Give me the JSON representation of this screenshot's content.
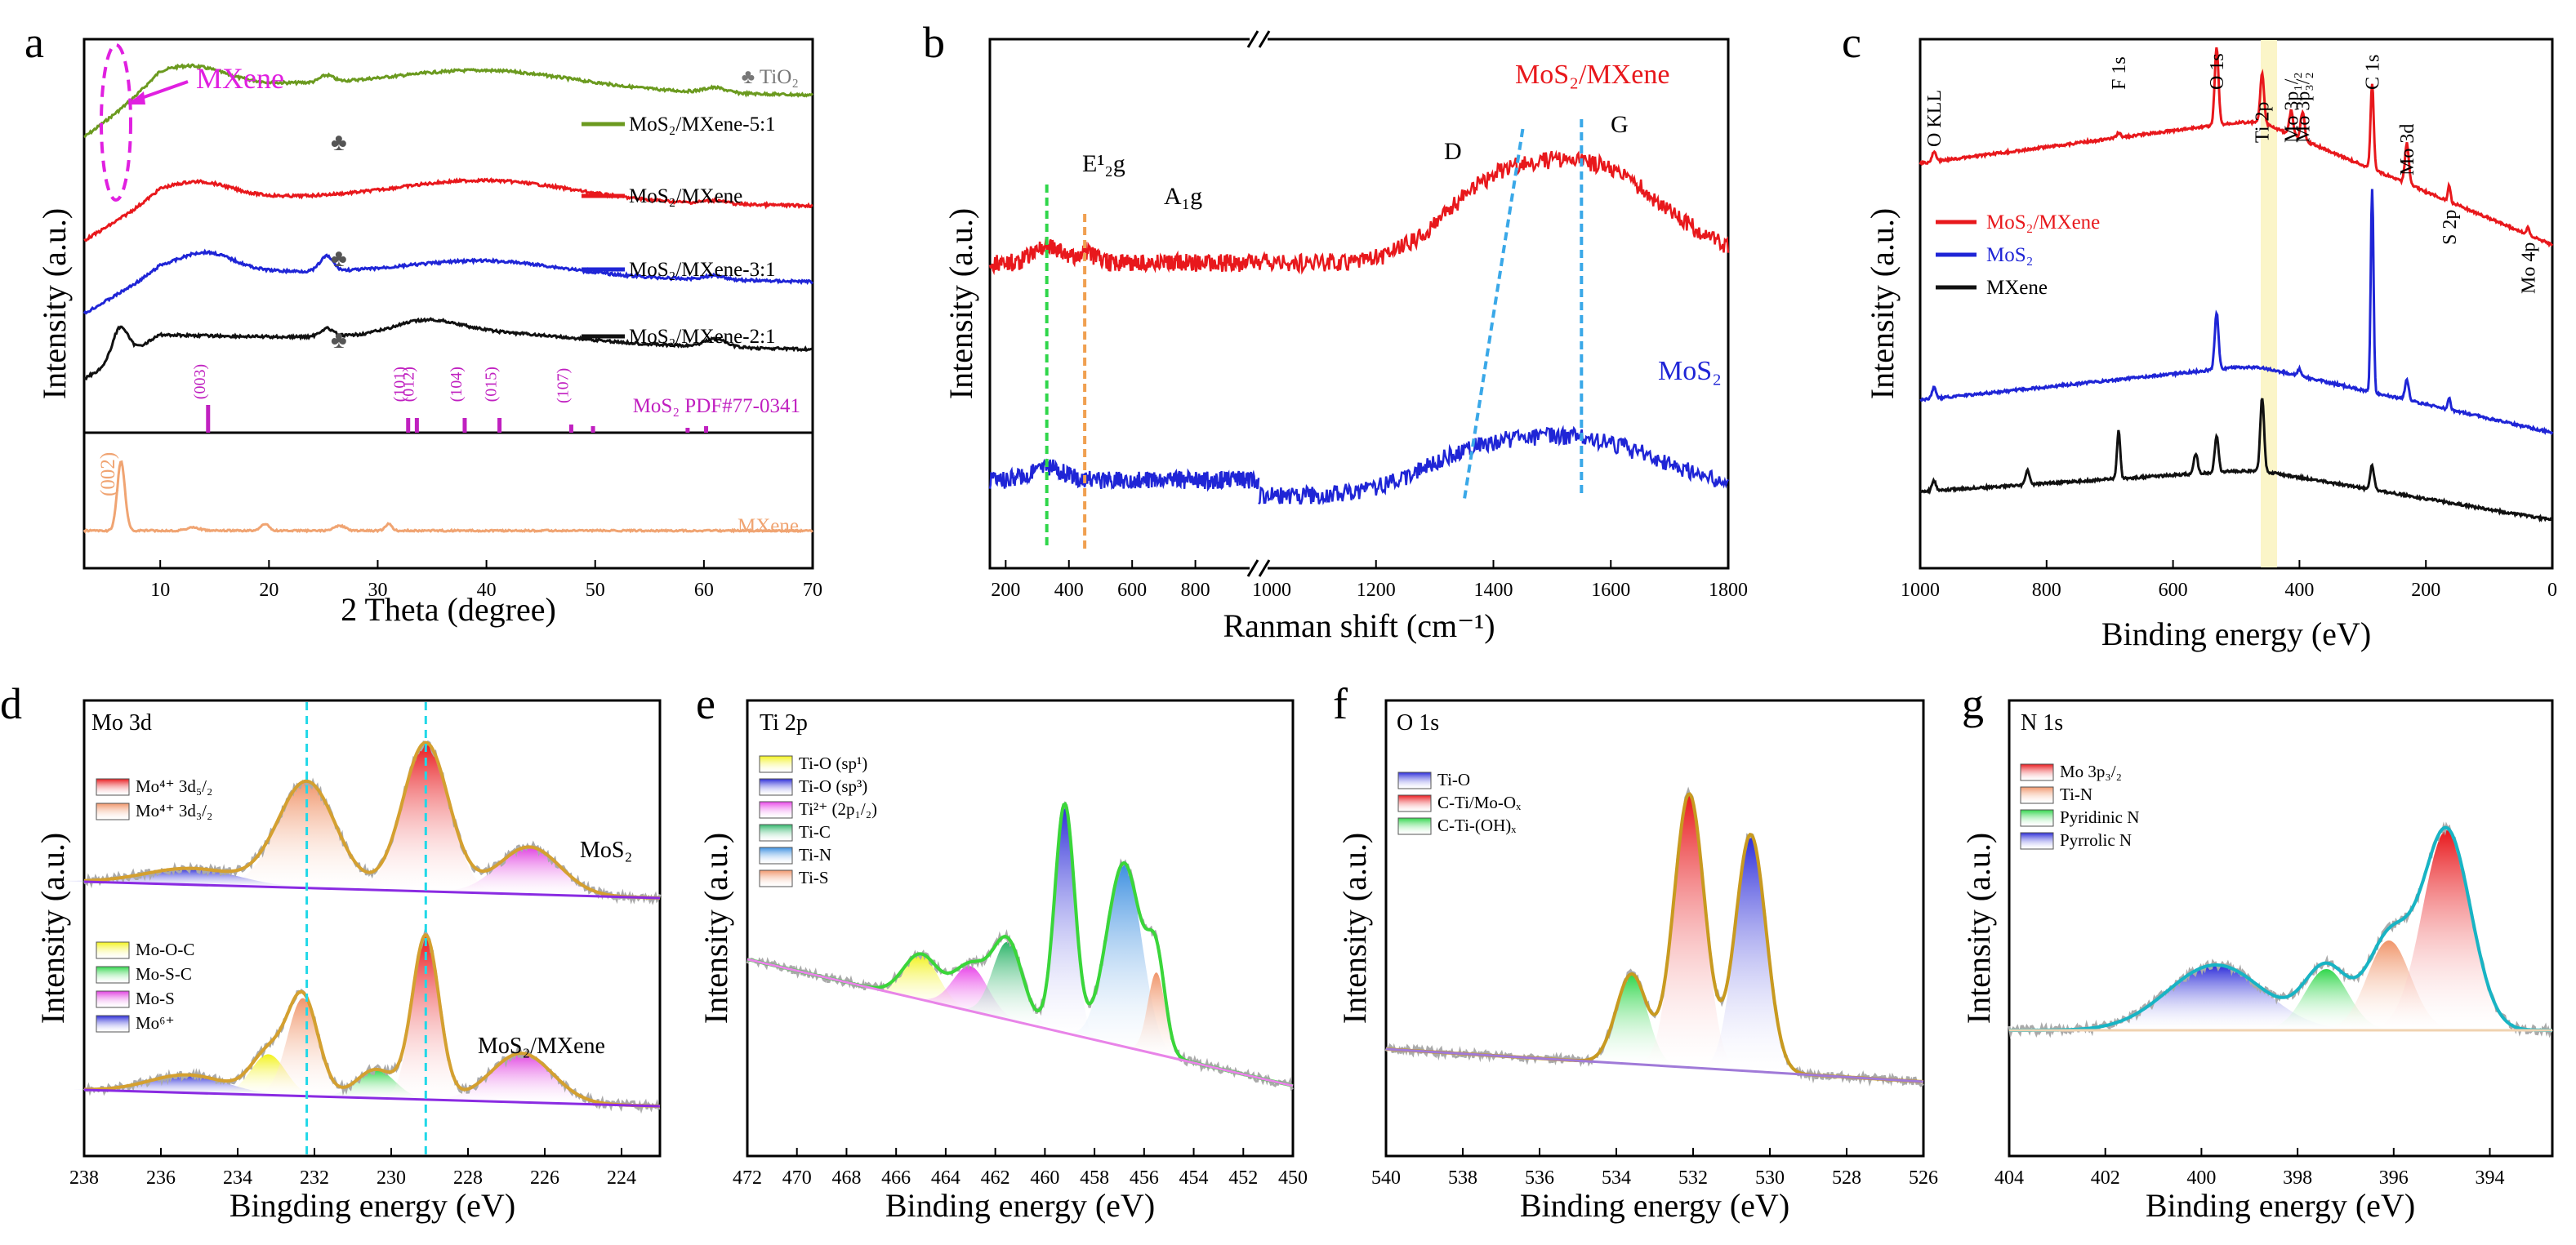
{
  "chart_data": [
    {
      "panel": "a",
      "type": "line",
      "xlabel": "2 Theta (degree)",
      "ylabel": "Intensity (a.u.)",
      "xlim": [
        3,
        70
      ],
      "xticks": [
        "10",
        "20",
        "30",
        "40",
        "50",
        "60",
        "70"
      ],
      "series": [
        {
          "name": "MoS2/MXene-5:1",
          "label": "MoS₂/MXene-5:1",
          "color": "#6b9a1f"
        },
        {
          "name": "MoS2/MXene",
          "label": "MoS₂/MXene",
          "color": "#e8181c"
        },
        {
          "name": "MoS2/MXene-3:1",
          "label": "MoS₂/MXene-3:1",
          "color": "#1f25d6"
        },
        {
          "name": "MoS2/MXene-2:1",
          "label": "MoS₂/MXene-2:1",
          "color": "#111111"
        },
        {
          "name": "MXene",
          "label": "MXene",
          "color": "#f0a472"
        }
      ],
      "annotations": {
        "mxene_marker": "MXene",
        "tio2_marker": "♣ TiO₂",
        "club": "♣",
        "reference": "MoS₂ PDF#77-0341",
        "mxene_peak": "(002)"
      },
      "reference_peaks": [
        {
          "label": "(003)",
          "x": 14.4
        },
        {
          "label": "(101)",
          "x": 32.8
        },
        {
          "label": "(012)",
          "x": 33.6
        },
        {
          "label": "(104)",
          "x": 38.0
        },
        {
          "label": "(015)",
          "x": 41.2
        },
        {
          "label": "(107)",
          "x": 47.8
        },
        {
          "label": "",
          "x": 49.8
        },
        {
          "label": "",
          "x": 58.5
        },
        {
          "label": "",
          "x": 60.2
        }
      ]
    },
    {
      "panel": "b",
      "type": "line",
      "xlabel": "Ranman shift (cm⁻¹)",
      "ylabel": "Intensity (a.u.)",
      "xlim_left": [
        150,
        1000
      ],
      "xlim_right": [
        1000,
        1800
      ],
      "xticks": [
        "200",
        "400",
        "600",
        "800",
        "1000",
        "1200",
        "1400",
        "1600",
        "1800"
      ],
      "series": [
        {
          "name": "MoS2/MXene",
          "label": "MoS₂/MXene",
          "color": "#e8181c"
        },
        {
          "name": "MoS2",
          "label": "MoS₂",
          "color": "#1f25d6"
        }
      ],
      "annotations": {
        "E2g": "E¹₂g",
        "A1g": "A₁g",
        "D": "D",
        "G": "G"
      },
      "marker_lines": {
        "E2g": 330,
        "A1g": 450,
        "G": 1550
      }
    },
    {
      "panel": "c",
      "type": "line",
      "xlabel": "Binding energy (eV)",
      "ylabel": "Intensity (a.u.)",
      "xlim": [
        1000,
        0
      ],
      "xticks": [
        "1000",
        "800",
        "600",
        "400",
        "200",
        "0"
      ],
      "series": [
        {
          "name": "MoS2/MXene",
          "label": "MoS₂/MXene",
          "color": "#e8181c"
        },
        {
          "name": "MoS2",
          "label": "MoS₂",
          "color": "#1f25d6"
        },
        {
          "name": "MXene",
          "label": "MXene",
          "color": "#111111"
        }
      ],
      "peak_labels": [
        {
          "label": "O KLL",
          "x": 978
        },
        {
          "label": "F 1s",
          "x": 686
        },
        {
          "label": "O 1s",
          "x": 531
        },
        {
          "label": "Ti 2p",
          "x": 459
        },
        {
          "label": "Mo 3p₁/₂",
          "x": 413
        },
        {
          "label": "Mo 3p₃/₂",
          "x": 395
        },
        {
          "label": "C 1s",
          "x": 285
        },
        {
          "label": "Mo 3d",
          "x": 230
        },
        {
          "label": "S 2p",
          "x": 163
        },
        {
          "label": "Mo 4p",
          "x": 38
        }
      ]
    },
    {
      "panel": "d",
      "type": "line",
      "title": "Mo 3d",
      "xlabel": "Bingding energy (eV)",
      "ylabel": "Intensity (a.u.)",
      "xlim": [
        238,
        223
      ],
      "xticks": [
        "238",
        "236",
        "234",
        "232",
        "230",
        "228",
        "226",
        "224"
      ],
      "samples": {
        "top": "MoS₂",
        "bottom": "MoS₂/MXene"
      },
      "legend_top": [
        "Mo⁴⁺ 3d₅/₂",
        "Mo⁴⁺ 3d₃/₂"
      ],
      "legend_bottom": [
        "Mo-O-C",
        "Mo-S-C",
        "Mo-S",
        "Mo⁶⁺"
      ],
      "components_top": [
        {
          "name": "Mo4+ 3d3/2",
          "center": 232.2,
          "color": "#f0956a"
        },
        {
          "name": "Mo4+ 3d5/2",
          "center": 229.1,
          "color": "#e8181c"
        },
        {
          "name": "Mo-S",
          "center": 226.4,
          "color": "#e040e0"
        },
        {
          "name": "Mo6+",
          "center": 235.2,
          "color": "#2a2ad8"
        }
      ],
      "components_bottom": [
        {
          "name": "Mo-O-C",
          "center": 233.2,
          "color": "#f2f21a"
        },
        {
          "name": "Mo-S-C",
          "center": 230.4,
          "color": "#2fd64a"
        },
        {
          "name": "Mo4+ 3d3/2",
          "center": 232.3,
          "color": "#f0956a"
        },
        {
          "name": "Mo4+ 3d5/2",
          "center": 229.1,
          "color": "#e8181c"
        },
        {
          "name": "Mo-S",
          "center": 226.6,
          "color": "#e040e0"
        },
        {
          "name": "Mo6+",
          "center": 235.3,
          "color": "#2a2ad8"
        }
      ],
      "guide_lines": [
        232.2,
        229.1
      ]
    },
    {
      "panel": "e",
      "type": "line",
      "title": "Ti 2p",
      "xlabel": "Binding energy (eV)",
      "ylabel": "Intensity (a.u.)",
      "xlim": [
        472,
        450
      ],
      "xticks": [
        "472",
        "470",
        "468",
        "466",
        "464",
        "462",
        "460",
        "458",
        "456",
        "454",
        "452",
        "450"
      ],
      "legend": [
        "Ti-O (sp¹)",
        "Ti-O (sp³)",
        "Ti²⁺ (2p₁/₂)",
        "Ti-C",
        "Ti-N",
        "Ti-S"
      ],
      "components": [
        {
          "name": "Ti-O (sp1)",
          "center": 465.0,
          "color": "#f2f21a"
        },
        {
          "name": "Ti2+ (2p1/2)",
          "center": 463.0,
          "color": "#e844e8"
        },
        {
          "name": "Ti-C",
          "center": 461.5,
          "color": "#2fb56a"
        },
        {
          "name": "Ti-O (sp3)",
          "center": 459.2,
          "color": "#2a2ad8"
        },
        {
          "name": "Ti-N",
          "center": 456.8,
          "color": "#3a8ee0"
        },
        {
          "name": "Ti-S",
          "center": 455.5,
          "color": "#f0956a"
        }
      ]
    },
    {
      "panel": "f",
      "type": "line",
      "title": "O 1s",
      "xlabel": "Binding energy (eV)",
      "ylabel": "Intensity (a.u.)",
      "xlim": [
        540,
        526
      ],
      "xticks": [
        "540",
        "538",
        "536",
        "534",
        "532",
        "530",
        "528",
        "526"
      ],
      "legend": [
        "Ti-O",
        "C-Ti/Mo-Oₓ",
        "C-Ti-(OH)ₓ"
      ],
      "components": [
        {
          "name": "C-Ti-(OH)x",
          "center": 533.6,
          "color": "#2fd64a"
        },
        {
          "name": "C-Ti/Mo-Ox",
          "center": 532.1,
          "color": "#e8181c"
        },
        {
          "name": "Ti-O",
          "center": 530.5,
          "color": "#2a2ad8"
        }
      ]
    },
    {
      "panel": "g",
      "type": "line",
      "title": "N 1s",
      "xlabel": "Binding energy (eV)",
      "ylabel": "Intensity (a.u.)",
      "xlim": [
        404,
        392.7
      ],
      "xticks": [
        "404",
        "402",
        "400",
        "398",
        "396",
        "394"
      ],
      "legend": [
        "Mo 3p₃/₂",
        "Ti-N",
        "Pyridinic N",
        "Pyrrolic N"
      ],
      "components": [
        {
          "name": "Pyrrolic N",
          "center": 399.7,
          "color": "#2a2ad8"
        },
        {
          "name": "Pyridinic N",
          "center": 397.4,
          "color": "#2fd64a"
        },
        {
          "name": "Ti-N",
          "center": 396.1,
          "color": "#f0956a"
        },
        {
          "name": "Mo 3p3/2",
          "center": 394.9,
          "color": "#e8181c"
        }
      ]
    }
  ],
  "panel_letters": [
    "a",
    "b",
    "c",
    "d",
    "e",
    "f",
    "g"
  ]
}
